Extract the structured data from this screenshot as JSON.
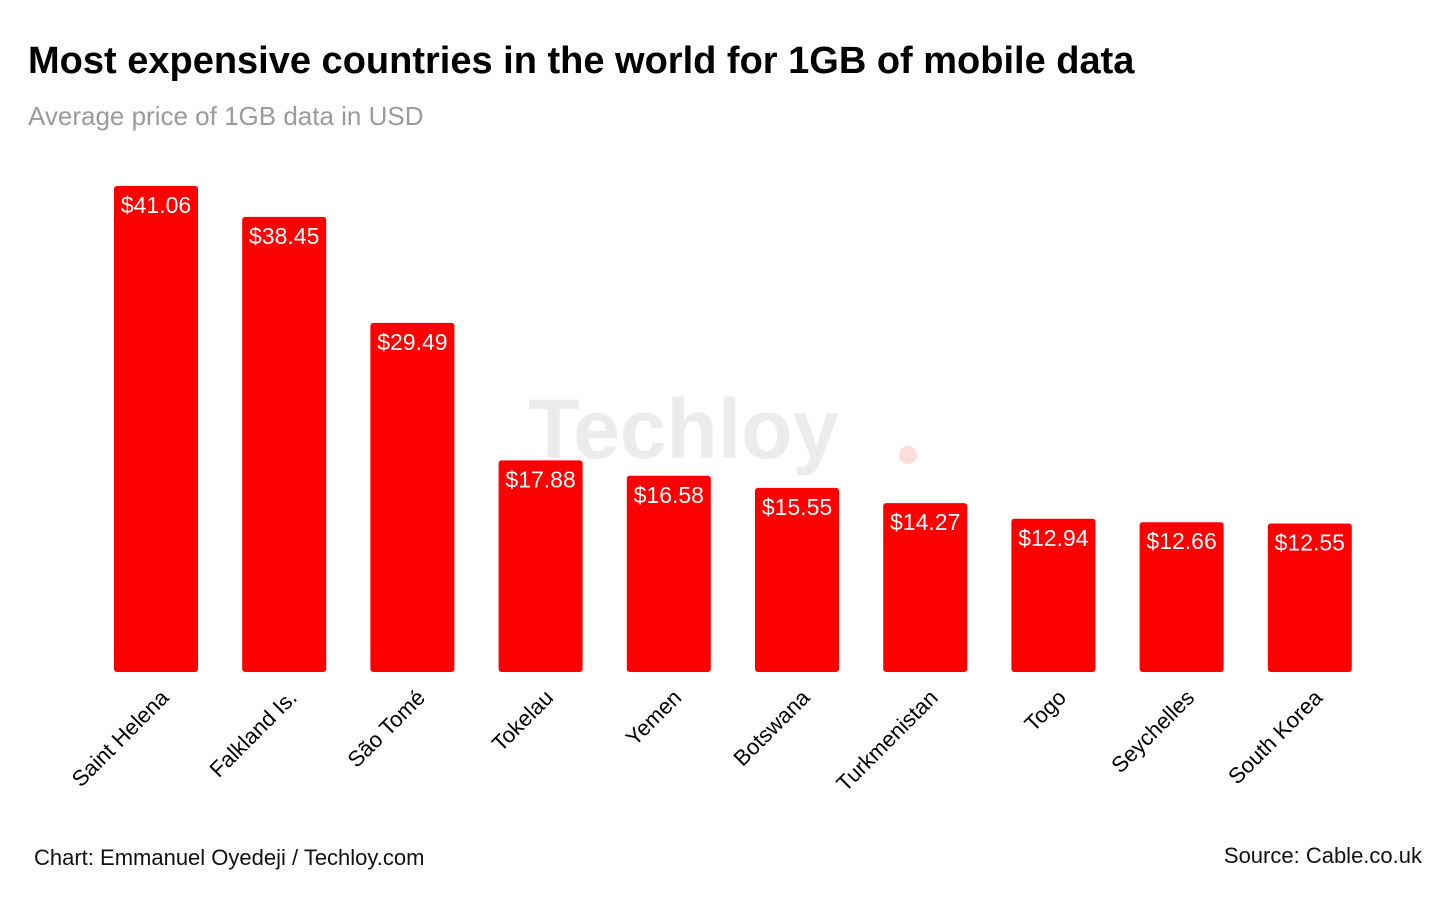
{
  "chart_data": {
    "type": "bar",
    "title": "Most expensive countries in the world for 1GB of mobile data",
    "subtitle": "Average price of 1GB data in USD",
    "categories": [
      "Saint Helena",
      "Falkland Is.",
      "São Tomé",
      "Tokelau",
      "Yemen",
      "Botswana",
      "Turkmenistan",
      "Togo",
      "Seychelles",
      "South Korea"
    ],
    "values": [
      41.06,
      38.45,
      29.49,
      17.88,
      16.58,
      15.55,
      14.27,
      12.94,
      12.66,
      12.55
    ],
    "value_labels": [
      "$41.06",
      "$38.45",
      "$29.49",
      "$17.88",
      "$16.58",
      "$15.55",
      "$14.27",
      "$12.94",
      "$12.66",
      "$12.55"
    ],
    "xlabel": "",
    "ylabel": "",
    "ylim": [
      0,
      41.06
    ],
    "grid": false,
    "legend": "none",
    "bar_color": "#ff0000",
    "watermark": "Techloy"
  },
  "footer": {
    "credit": "Chart: Emmanuel Oyedeji / Techloy.com",
    "source": "Source: Cable.co.uk"
  }
}
